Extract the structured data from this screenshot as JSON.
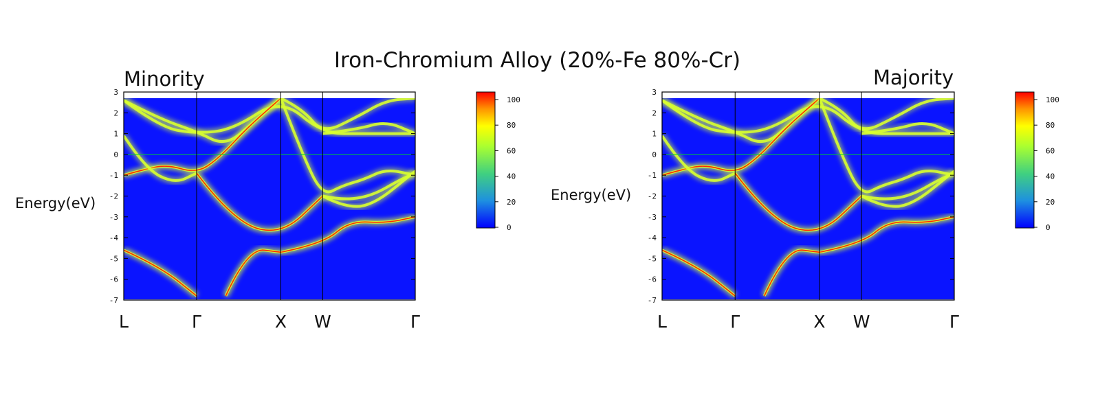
{
  "title": "Iron-Chromium Alloy (20%-Fe 80%-Cr)",
  "panels": [
    {
      "label": "Minority",
      "ylabel": "Energy(eV)"
    },
    {
      "label": "Majority",
      "ylabel": "Energy(eV)"
    }
  ],
  "colors": {
    "background": "#0a14ff",
    "band_core": "#ff2a00",
    "band_glow": "#d8ff30",
    "fermi_line": "#00cc33",
    "axis": "#000000"
  },
  "chart_data": [
    {
      "type": "heatmap",
      "title": "Minority",
      "ylabel": "Energy(eV)",
      "ylim": [
        -7,
        3
      ],
      "yticks": [
        3,
        2,
        1,
        0,
        -1,
        -2,
        -3,
        -4,
        -5,
        -6,
        -7
      ],
      "kpoints": [
        {
          "label": "L",
          "pos": 0
        },
        {
          "label": "Γ",
          "pos": 1
        },
        {
          "label": "X",
          "pos": 2.155
        },
        {
          "label": "W",
          "pos": 2.73
        },
        {
          "label": "Γ",
          "pos": 4
        }
      ],
      "fermi_level": 0,
      "colorbar": {
        "min": 0,
        "max": 100,
        "ticks": [
          100,
          80,
          60,
          40,
          20,
          0
        ]
      },
      "bands": [
        {
          "x": [
            0,
            0.5,
            1,
            1.5,
            2.155,
            2.73,
            3.3,
            4
          ],
          "y": [
            2.6,
            1.3,
            1.0,
            1.2,
            2.7,
            1.0,
            1.0,
            1.0
          ],
          "weight": 0.6
        },
        {
          "x": [
            0,
            0.5,
            1,
            1.4,
            1.8,
            2.155
          ],
          "y": [
            2.6,
            1.7,
            1.1,
            0.4,
            1.6,
            2.7
          ],
          "weight": 0.6
        },
        {
          "x": [
            2.155,
            2.45,
            2.73,
            3.2,
            3.6,
            4
          ],
          "y": [
            2.7,
            2.2,
            1.0,
            1.8,
            2.6,
            2.7
          ],
          "weight": 0.35
        },
        {
          "x": [
            2.73,
            3.2,
            3.6,
            4
          ],
          "y": [
            1.0,
            1.2,
            1.6,
            1.0
          ],
          "weight": 0.35
        },
        {
          "x": [
            0,
            0.3,
            0.6,
            1,
            1.3,
            1.7,
            2.155
          ],
          "y": [
            -1.0,
            -0.7,
            -0.5,
            -0.9,
            -0.2,
            1.3,
            2.7
          ],
          "weight": 0.95
        },
        {
          "x": [
            0,
            0.3,
            0.7,
            1
          ],
          "y": [
            0.9,
            -0.7,
            -1.4,
            -0.9
          ],
          "weight": 0.6
        },
        {
          "x": [
            1,
            1.5,
            2.155,
            2.73
          ],
          "y": [
            -0.9,
            -3.2,
            -3.9,
            -2.0
          ],
          "weight": 0.9
        },
        {
          "x": [
            2.155,
            2.73,
            3.1,
            3.6,
            4
          ],
          "y": [
            -4.7,
            -4.3,
            -3.2,
            -3.3,
            -3.0
          ],
          "weight": 0.9
        },
        {
          "x": [
            0,
            0.5,
            1
          ],
          "y": [
            -4.6,
            -5.4,
            -6.8
          ],
          "weight": 0.9
        },
        {
          "x": [
            1.4,
            1.7,
            2.155
          ],
          "y": [
            -6.8,
            -4.5,
            -4.7
          ],
          "weight": 0.9
        },
        {
          "x": [
            2.155,
            2.45,
            2.73,
            3.0,
            3.3,
            3.6,
            4
          ],
          "y": [
            2.7,
            0.0,
            -2.0,
            -1.5,
            -1.2,
            -0.7,
            -1.0
          ],
          "weight": 0.55
        },
        {
          "x": [
            2.73,
            3.0,
            3.4,
            4
          ],
          "y": [
            -2.0,
            -2.5,
            -2.5,
            -0.8
          ],
          "weight": 0.6
        },
        {
          "x": [
            2.73,
            3.0,
            3.4,
            3.8,
            4
          ],
          "y": [
            -2.0,
            -2.2,
            -2.0,
            -1.2,
            -0.9
          ],
          "weight": 0.4
        }
      ]
    },
    {
      "type": "heatmap",
      "title": "Majority",
      "ylabel": "Energy(eV)",
      "ylim": [
        -7,
        3
      ],
      "yticks": [
        3,
        2,
        1,
        0,
        -1,
        -2,
        -3,
        -4,
        -5,
        -6,
        -7
      ],
      "kpoints": [
        {
          "label": "L",
          "pos": 0
        },
        {
          "label": "Γ",
          "pos": 1
        },
        {
          "label": "X",
          "pos": 2.155
        },
        {
          "label": "W",
          "pos": 2.73
        },
        {
          "label": "Γ",
          "pos": 4
        }
      ],
      "fermi_level": 0,
      "colorbar": {
        "min": 0,
        "max": 100,
        "ticks": [
          100,
          80,
          60,
          40,
          20,
          0
        ]
      },
      "bands": [
        {
          "x": [
            0,
            0.5,
            1,
            1.5,
            2.155,
            2.73,
            3.3,
            4
          ],
          "y": [
            2.6,
            1.3,
            1.0,
            1.2,
            2.7,
            1.0,
            1.0,
            1.0
          ],
          "weight": 0.6
        },
        {
          "x": [
            0,
            0.5,
            1,
            1.4,
            1.8,
            2.155
          ],
          "y": [
            2.6,
            1.7,
            1.1,
            0.4,
            1.6,
            2.7
          ],
          "weight": 0.6
        },
        {
          "x": [
            2.155,
            2.45,
            2.73,
            3.2,
            3.6,
            4
          ],
          "y": [
            2.7,
            2.2,
            1.0,
            1.8,
            2.6,
            2.7
          ],
          "weight": 0.35
        },
        {
          "x": [
            2.73,
            3.2,
            3.6,
            4
          ],
          "y": [
            1.0,
            1.2,
            1.6,
            1.0
          ],
          "weight": 0.35
        },
        {
          "x": [
            0,
            0.3,
            0.6,
            1,
            1.3,
            1.7,
            2.155
          ],
          "y": [
            -1.0,
            -0.7,
            -0.5,
            -0.9,
            -0.2,
            1.3,
            2.7
          ],
          "weight": 0.95
        },
        {
          "x": [
            0,
            0.3,
            0.7,
            1
          ],
          "y": [
            0.9,
            -0.7,
            -1.4,
            -0.9
          ],
          "weight": 0.6
        },
        {
          "x": [
            1,
            1.5,
            2.155,
            2.73
          ],
          "y": [
            -0.9,
            -3.2,
            -3.9,
            -2.0
          ],
          "weight": 0.9
        },
        {
          "x": [
            2.155,
            2.73,
            3.1,
            3.6,
            4
          ],
          "y": [
            -4.7,
            -4.3,
            -3.2,
            -3.3,
            -3.0
          ],
          "weight": 0.9
        },
        {
          "x": [
            0,
            0.5,
            1
          ],
          "y": [
            -4.6,
            -5.4,
            -6.8
          ],
          "weight": 0.9
        },
        {
          "x": [
            1.4,
            1.7,
            2.155
          ],
          "y": [
            -6.8,
            -4.5,
            -4.7
          ],
          "weight": 0.9
        },
        {
          "x": [
            2.155,
            2.45,
            2.73,
            3.0,
            3.3,
            3.6,
            4
          ],
          "y": [
            2.7,
            0.0,
            -2.0,
            -1.5,
            -1.2,
            -0.7,
            -1.0
          ],
          "weight": 0.55
        },
        {
          "x": [
            2.73,
            3.0,
            3.4,
            4
          ],
          "y": [
            -2.0,
            -2.5,
            -2.5,
            -0.8
          ],
          "weight": 0.6
        },
        {
          "x": [
            2.73,
            3.0,
            3.4,
            3.8,
            4
          ],
          "y": [
            -2.0,
            -2.2,
            -2.0,
            -1.2,
            -0.9
          ],
          "weight": 0.4
        }
      ]
    }
  ]
}
